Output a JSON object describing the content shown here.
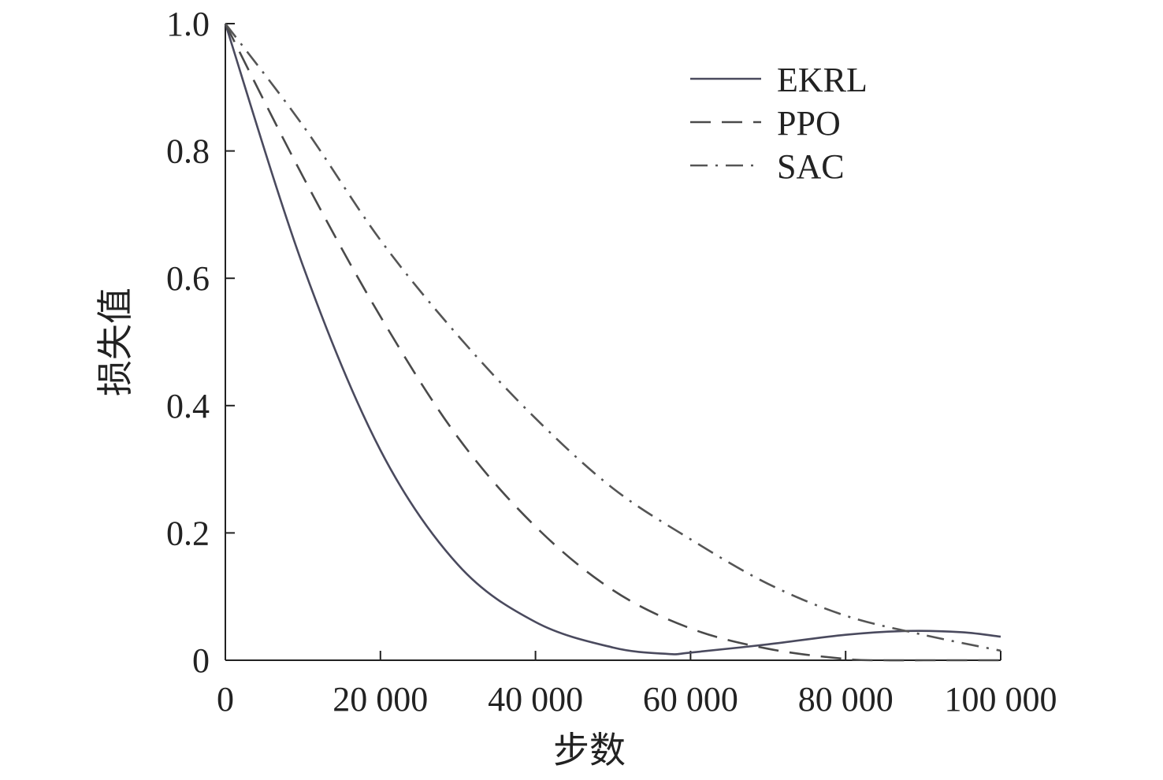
{
  "chart_data": {
    "type": "line",
    "title": "",
    "xlabel": "步数",
    "ylabel": "损失值",
    "xlim": [
      0,
      100000
    ],
    "ylim": [
      0,
      1.0
    ],
    "x_ticks": [
      {
        "value": 0,
        "label": "0"
      },
      {
        "value": 20000,
        "label": "20 000"
      },
      {
        "value": 40000,
        "label": "40 000"
      },
      {
        "value": 60000,
        "label": "60 000"
      },
      {
        "value": 80000,
        "label": "80 000"
      },
      {
        "value": 100000,
        "label": "100 000"
      }
    ],
    "y_ticks": [
      {
        "value": 0,
        "label": "0"
      },
      {
        "value": 0.2,
        "label": "0.2"
      },
      {
        "value": 0.4,
        "label": "0.4"
      },
      {
        "value": 0.6,
        "label": "0.6"
      },
      {
        "value": 0.8,
        "label": "0.8"
      },
      {
        "value": 1.0,
        "label": "1.0"
      }
    ],
    "grid": false,
    "legend": {
      "position": "top-right"
    },
    "series": [
      {
        "name": "EKRL",
        "style": "solid",
        "color": "#4a4a5e",
        "x": [
          0,
          10000,
          20000,
          30000,
          40000,
          50000,
          57000,
          60000,
          70000,
          80000,
          88000,
          95000,
          100000
        ],
        "y": [
          1.0,
          0.62,
          0.33,
          0.15,
          0.06,
          0.02,
          0.01,
          0.012,
          0.025,
          0.04,
          0.046,
          0.044,
          0.037
        ]
      },
      {
        "name": "PPO",
        "style": "dashed",
        "color": "#4a4a4a",
        "x": [
          0,
          10000,
          20000,
          30000,
          40000,
          50000,
          60000,
          70000,
          80000,
          85000,
          90000,
          100000
        ],
        "y": [
          1.0,
          0.76,
          0.54,
          0.35,
          0.21,
          0.11,
          0.05,
          0.018,
          0.002,
          0.0,
          0.0,
          0.0
        ]
      },
      {
        "name": "SAC",
        "style": "dash-dot",
        "color": "#555555",
        "x": [
          0,
          10000,
          20000,
          30000,
          40000,
          50000,
          60000,
          70000,
          80000,
          90000,
          100000
        ],
        "y": [
          1.0,
          0.84,
          0.66,
          0.51,
          0.38,
          0.27,
          0.19,
          0.12,
          0.07,
          0.04,
          0.015
        ]
      }
    ]
  }
}
